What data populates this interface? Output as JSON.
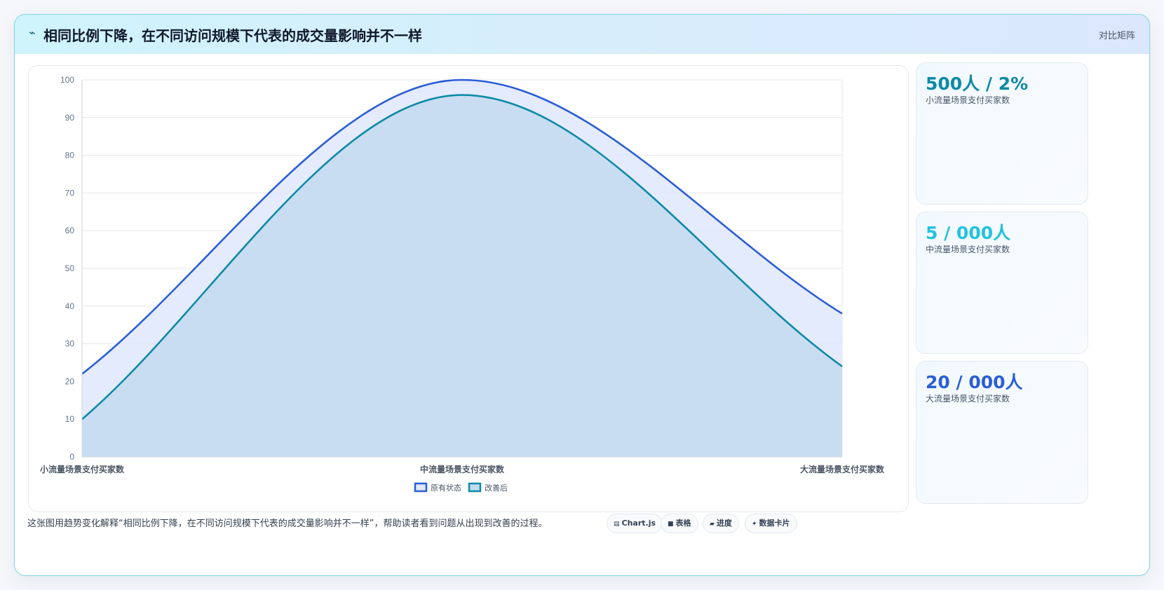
{
  "header": {
    "icon": "pulse-icon",
    "title": "相同比例下降，在不同访问规模下代表的成交量影响并不一样",
    "tag": "对比矩阵"
  },
  "chart_data": {
    "type": "area",
    "categories": [
      "小流量场景支付买家数",
      "中流量场景支付买家数",
      "大流量场景支付买家数"
    ],
    "series": [
      {
        "name": "原有状态",
        "values": [
          22,
          100,
          38
        ],
        "color": "#2b5ed6",
        "fill": "#dfe8fb"
      },
      {
        "name": "改善后",
        "values": [
          10,
          96,
          24
        ],
        "color": "#0e8aa6",
        "fill": "#c3daf0"
      }
    ],
    "ylim": [
      0,
      100
    ],
    "yticks": [
      0,
      10,
      20,
      30,
      40,
      50,
      60,
      70,
      80,
      90,
      100
    ],
    "grid": true,
    "legend_position": "bottom"
  },
  "stats": [
    {
      "value": "500人 / 2%",
      "label": "小流量场景支付买家数",
      "color": "#0e8aa6"
    },
    {
      "value": "5 / 000人",
      "label": "中流量场景支付买家数",
      "color": "#22c3dd"
    },
    {
      "value": "20 / 000人",
      "label": "大流量场景支付买家数",
      "color": "#2b5ed6"
    }
  ],
  "footer": {
    "text": "这张图用趋势变化解释“相同比例下降，在不同访问规模下代表的成交量影响并不一样”，帮助读者看到问题从出现到改善的过程。",
    "chips": [
      {
        "icon": "chart-icon",
        "glyph": "▤",
        "label": "Chart.js"
      },
      {
        "icon": "table-icon",
        "glyph": "■",
        "label": "表格"
      },
      {
        "icon": "progress-icon",
        "glyph": "▰",
        "label": "进度"
      },
      {
        "icon": "data-card-icon",
        "glyph": "✦",
        "label": "数据卡片"
      }
    ]
  }
}
